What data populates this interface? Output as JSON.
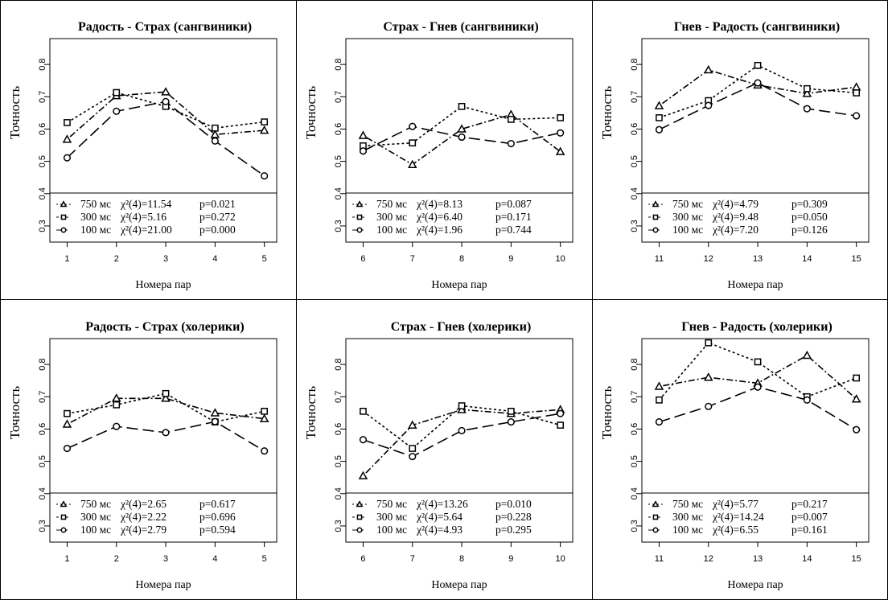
{
  "figure": {
    "y_label": "Точность",
    "x_label": "Номера пар"
  },
  "chart_data": [
    {
      "type": "line",
      "title": "Радость - Страх (сангвиники)",
      "xlabel": "Номера пар",
      "ylabel": "Точность",
      "x": [
        1,
        2,
        3,
        4,
        5
      ],
      "x_ticks": [
        "1",
        "2",
        "3",
        "4",
        "5"
      ],
      "ylim": [
        0.25,
        0.88
      ],
      "y_ticks": [
        "0.3",
        "0.4",
        "0.5",
        "0.6",
        "0.7",
        "0.8"
      ],
      "series": [
        {
          "key": "750",
          "style": "dotdash",
          "marker": "triangle",
          "values": [
            0.568,
            0.703,
            0.715,
            0.583,
            0.596
          ]
        },
        {
          "key": "300",
          "style": "dotted",
          "marker": "square",
          "values": [
            0.62,
            0.713,
            0.67,
            0.603,
            0.622
          ]
        },
        {
          "key": "100",
          "style": "longdash",
          "marker": "circle",
          "values": [
            0.511,
            0.655,
            0.685,
            0.563,
            0.455
          ]
        }
      ],
      "legend": [
        {
          "symbol": "-Δ-",
          "text": "750 мс χ²(4)=11.54  p=0.021"
        },
        {
          "symbol": "-□-",
          "text": "300 мс χ²(4)=5.16   p=0.272"
        },
        {
          "symbol": "-○-",
          "text": "100 мс χ²(4)=21.00  p=0.000"
        }
      ],
      "legend_items": [
        {
          "marker": "triangle",
          "label": "750 мс",
          "chi": "χ²(4)=11.54",
          "p": "p=0.021"
        },
        {
          "marker": "square",
          "label": "300 мс",
          "chi": "χ²(4)=5.16",
          "p": "p=0.272"
        },
        {
          "marker": "circle",
          "label": "100 мс",
          "chi": "χ²(4)=21.00",
          "p": "p=0.000"
        }
      ]
    },
    {
      "type": "line",
      "title": "Страх - Гнев (сангвиники)",
      "xlabel": "Номера пар",
      "ylabel": "Точность",
      "x": [
        6,
        7,
        8,
        9,
        10
      ],
      "x_ticks": [
        "6",
        "7",
        "8",
        "9",
        "10"
      ],
      "ylim": [
        0.25,
        0.88
      ],
      "y_ticks": [
        "0.3",
        "0.4",
        "0.5",
        "0.6",
        "0.7",
        "0.8"
      ],
      "series": [
        {
          "key": "750",
          "style": "dotdash",
          "marker": "triangle",
          "values": [
            0.58,
            0.49,
            0.6,
            0.645,
            0.53
          ]
        },
        {
          "key": "300",
          "style": "dotted",
          "marker": "square",
          "values": [
            0.548,
            0.557,
            0.67,
            0.63,
            0.635
          ]
        },
        {
          "key": "100",
          "style": "longdash",
          "marker": "circle",
          "values": [
            0.532,
            0.608,
            0.575,
            0.555,
            0.588
          ]
        }
      ],
      "legend_items": [
        {
          "marker": "triangle",
          "label": "750 мс",
          "chi": "χ²(4)=8.13",
          "p": "p=0.087"
        },
        {
          "marker": "square",
          "label": "300 мс",
          "chi": "χ²(4)=6.40",
          "p": "p=0.171"
        },
        {
          "marker": "circle",
          "label": "100 мс",
          "chi": "χ²(4)=1.96",
          "p": "p=0.744"
        }
      ]
    },
    {
      "type": "line",
      "title": "Гнев - Радость (сангвиники)",
      "xlabel": "Номера пар",
      "ylabel": "Точность",
      "x": [
        11,
        12,
        13,
        14,
        15
      ],
      "x_ticks": [
        "11",
        "12",
        "13",
        "14",
        "15"
      ],
      "ylim": [
        0.25,
        0.88
      ],
      "y_ticks": [
        "0.3",
        "0.4",
        "0.5",
        "0.6",
        "0.7",
        "0.8"
      ],
      "series": [
        {
          "key": "750",
          "style": "dotdash",
          "marker": "triangle",
          "values": [
            0.672,
            0.783,
            0.736,
            0.71,
            0.73
          ]
        },
        {
          "key": "300",
          "style": "dotted",
          "marker": "square",
          "values": [
            0.635,
            0.688,
            0.797,
            0.725,
            0.712
          ]
        },
        {
          "key": "100",
          "style": "longdash",
          "marker": "circle",
          "values": [
            0.598,
            0.673,
            0.743,
            0.663,
            0.641
          ]
        }
      ],
      "legend_items": [
        {
          "marker": "triangle",
          "label": "750 мс",
          "chi": "χ²(4)=4.79",
          "p": "p=0.309"
        },
        {
          "marker": "square",
          "label": "300 мс",
          "chi": "χ²(4)=9.48",
          "p": "p=0.050"
        },
        {
          "marker": "circle",
          "label": "100 мс",
          "chi": "χ²(4)=7.20",
          "p": "p=0.126"
        }
      ]
    },
    {
      "type": "line",
      "title": "Радость - Страх (холерики)",
      "xlabel": "Номера пар",
      "ylabel": "Точность",
      "x": [
        1,
        2,
        3,
        4,
        5
      ],
      "x_ticks": [
        "1",
        "2",
        "3",
        "4",
        "5"
      ],
      "ylim": [
        0.25,
        0.88
      ],
      "y_ticks": [
        "0.3",
        "0.4",
        "0.5",
        "0.6",
        "0.7",
        "0.8"
      ],
      "series": [
        {
          "key": "750",
          "style": "dotdash",
          "marker": "triangle",
          "values": [
            0.615,
            0.695,
            0.695,
            0.65,
            0.632
          ]
        },
        {
          "key": "300",
          "style": "dotted",
          "marker": "square",
          "values": [
            0.648,
            0.675,
            0.71,
            0.622,
            0.655
          ]
        },
        {
          "key": "100",
          "style": "longdash",
          "marker": "circle",
          "values": [
            0.54,
            0.608,
            0.589,
            0.623,
            0.532
          ]
        }
      ],
      "legend_items": [
        {
          "marker": "triangle",
          "label": "750 мс",
          "chi": "χ²(4)=2.65",
          "p": "p=0.617"
        },
        {
          "marker": "square",
          "label": "300 мс",
          "chi": "χ²(4)=2.22",
          "p": "p=0.696"
        },
        {
          "marker": "circle",
          "label": "100 мс",
          "chi": "χ²(4)=2.79",
          "p": "p=0.594"
        }
      ]
    },
    {
      "type": "line",
      "title": "Страх - Гнев (холерики)",
      "xlabel": "Номера пар",
      "ylabel": "Точность",
      "x": [
        6,
        7,
        8,
        9,
        10
      ],
      "x_ticks": [
        "6",
        "7",
        "8",
        "9",
        "10"
      ],
      "ylim": [
        0.25,
        0.88
      ],
      "y_ticks": [
        "0.3",
        "0.4",
        "0.5",
        "0.6",
        "0.7",
        "0.8"
      ],
      "series": [
        {
          "key": "750",
          "style": "dotdash",
          "marker": "triangle",
          "values": [
            0.455,
            0.612,
            0.66,
            0.648,
            0.66
          ]
        },
        {
          "key": "300",
          "style": "dotted",
          "marker": "square",
          "values": [
            0.655,
            0.54,
            0.672,
            0.655,
            0.612
          ]
        },
        {
          "key": "100",
          "style": "longdash",
          "marker": "circle",
          "values": [
            0.567,
            0.515,
            0.595,
            0.622,
            0.648
          ]
        }
      ],
      "legend_items": [
        {
          "marker": "triangle",
          "label": "750 мс",
          "chi": "χ²(4)=13.26",
          "p": "p=0.010"
        },
        {
          "marker": "square",
          "label": "300 мс",
          "chi": "χ²(4)=5.64",
          "p": "p=0.228"
        },
        {
          "marker": "circle",
          "label": "100 мс",
          "chi": "χ²(4)=4.93",
          "p": "p=0.295"
        }
      ]
    },
    {
      "type": "line",
      "title": "Гнев - Радость (холерики)",
      "xlabel": "Номера пар",
      "ylabel": "Точность",
      "x": [
        11,
        12,
        13,
        14,
        15
      ],
      "x_ticks": [
        "11",
        "12",
        "13",
        "14",
        "15"
      ],
      "ylim": [
        0.25,
        0.88
      ],
      "y_ticks": [
        "0.3",
        "0.4",
        "0.5",
        "0.6",
        "0.7",
        "0.8"
      ],
      "series": [
        {
          "key": "750",
          "style": "dotdash",
          "marker": "triangle",
          "values": [
            0.732,
            0.76,
            0.742,
            0.828,
            0.693
          ]
        },
        {
          "key": "300",
          "style": "dotted",
          "marker": "square",
          "values": [
            0.69,
            0.867,
            0.808,
            0.7,
            0.758
          ]
        },
        {
          "key": "100",
          "style": "longdash",
          "marker": "circle",
          "values": [
            0.622,
            0.67,
            0.73,
            0.69,
            0.598
          ]
        }
      ],
      "legend_items": [
        {
          "marker": "triangle",
          "label": "750 мс",
          "chi": "χ²(4)=5.77",
          "p": "p=0.217"
        },
        {
          "marker": "square",
          "label": "300 мс",
          "chi": "χ²(4)=14.24",
          "p": "p=0.007"
        },
        {
          "marker": "circle",
          "label": "100 мс",
          "chi": "χ²(4)=6.55",
          "p": "p=0.161"
        }
      ]
    }
  ]
}
